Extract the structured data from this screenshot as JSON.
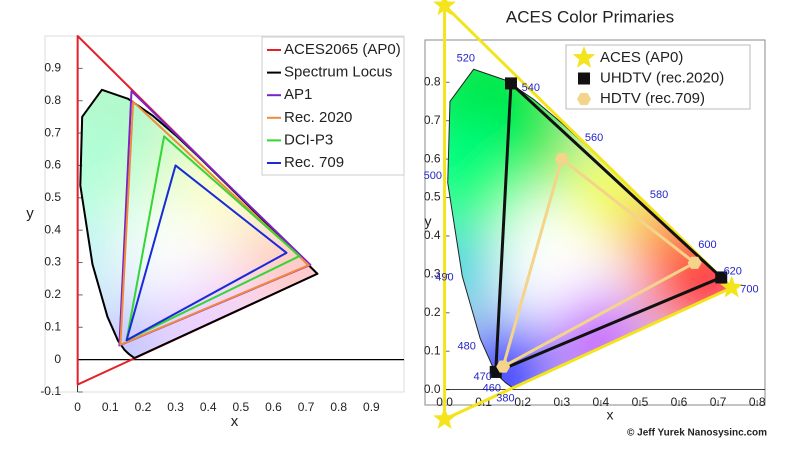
{
  "chart_data": [
    {
      "type": "chromaticity",
      "xlabel": "x",
      "ylabel": "y",
      "xlim": [
        -0.1,
        1.0
      ],
      "ylim": [
        -0.1,
        1.0
      ],
      "xticks": [
        0,
        0.1,
        0.2,
        0.3,
        0.4,
        0.5,
        0.6,
        0.7,
        0.8,
        0.9
      ],
      "yticks": [
        -0.1,
        0,
        0.1,
        0.2,
        0.3,
        0.4,
        0.5,
        0.6,
        0.7,
        0.8,
        0.9
      ],
      "legend": "upper right",
      "series": [
        {
          "name": "ACES2065 (AP0)",
          "color": "#e5202a",
          "closed": true,
          "x": [
            0.7347,
            0,
            0.0001
          ],
          "y": [
            0.2653,
            1,
            -0.077
          ]
        },
        {
          "name": "Spectrum Locus",
          "color": "#000000",
          "closed": true,
          "fill": "pastel",
          "x": [
            0.1741,
            0.1566,
            0.144,
            0.1241,
            0.0913,
            0.0454,
            0.0082,
            0.0139,
            0.0743,
            0.1547,
            0.2296,
            0.3016,
            0.3731,
            0.4441,
            0.5125,
            0.5752,
            0.627,
            0.6915,
            0.7347
          ],
          "y": [
            0.005,
            0.0177,
            0.0297,
            0.0578,
            0.1327,
            0.295,
            0.5384,
            0.7502,
            0.8338,
            0.8059,
            0.7543,
            0.6923,
            0.6245,
            0.5547,
            0.4866,
            0.4242,
            0.3725,
            0.3083,
            0.2653
          ]
        },
        {
          "name": "AP1",
          "color": "#7b22c8",
          "closed": true,
          "x": [
            0.713,
            0.165,
            0.128
          ],
          "y": [
            0.293,
            0.83,
            0.044
          ]
        },
        {
          "name": "Rec. 2020",
          "color": "#f08a3c",
          "closed": true,
          "x": [
            0.708,
            0.17,
            0.131
          ],
          "y": [
            0.292,
            0.797,
            0.046
          ]
        },
        {
          "name": "DCI-P3",
          "color": "#33d633",
          "closed": true,
          "x": [
            0.68,
            0.265,
            0.15
          ],
          "y": [
            0.32,
            0.69,
            0.06
          ]
        },
        {
          "name": "Rec. 709",
          "color": "#1a2ad6",
          "closed": true,
          "x": [
            0.64,
            0.3,
            0.15
          ],
          "y": [
            0.33,
            0.6,
            0.06
          ]
        }
      ]
    },
    {
      "type": "chromaticity",
      "title": "ACES Color Primaries",
      "xlabel": "x",
      "ylabel": "y",
      "xlim": [
        -0.05,
        0.82
      ],
      "ylim": [
        -0.04,
        0.91
      ],
      "xticks": [
        {
          "value": 0,
          "label": "0.0"
        },
        0.1,
        0.2,
        0.3,
        0.4,
        0.5,
        0.6,
        0.7,
        0.8
      ],
      "yticks": [
        {
          "value": 0,
          "label": "0.0"
        },
        0.1,
        0.2,
        0.3,
        0.4,
        0.5,
        0.6,
        0.7,
        0.8
      ],
      "legend": "upper right",
      "spectrum_locus": {
        "fill": "vivid",
        "x": [
          0.1741,
          0.1566,
          0.144,
          0.1241,
          0.0913,
          0.0454,
          0.0082,
          0.0139,
          0.0743,
          0.1547,
          0.2296,
          0.3016,
          0.3731,
          0.4441,
          0.5125,
          0.5752,
          0.627,
          0.6915,
          0.7347
        ],
        "y": [
          0.005,
          0.0177,
          0.0297,
          0.0578,
          0.1327,
          0.295,
          0.5384,
          0.7502,
          0.8338,
          0.8059,
          0.7543,
          0.6923,
          0.6245,
          0.5547,
          0.4866,
          0.4242,
          0.3725,
          0.3083,
          0.2653
        ]
      },
      "annotations": [
        {
          "text": "380",
          "x": 0.1741,
          "y": 0.005
        },
        {
          "text": "460",
          "x": 0.144,
          "y": 0.0297
        },
        {
          "text": "470",
          "x": 0.1241,
          "y": 0.0578
        },
        {
          "text": "480",
          "x": 0.0913,
          "y": 0.1327
        },
        {
          "text": "490",
          "x": 0.0454,
          "y": 0.295
        },
        {
          "text": "500",
          "x": 0.0082,
          "y": 0.5384
        },
        {
          "text": "520",
          "x": 0.0743,
          "y": 0.8338
        },
        {
          "text": "540",
          "x": 0.2296,
          "y": 0.7543
        },
        {
          "text": "560",
          "x": 0.3731,
          "y": 0.6245
        },
        {
          "text": "580",
          "x": 0.5125,
          "y": 0.4866
        },
        {
          "text": "600",
          "x": 0.627,
          "y": 0.3725
        },
        {
          "text": "620",
          "x": 0.6915,
          "y": 0.3083
        },
        {
          "text": "700",
          "x": 0.7347,
          "y": 0.2653
        }
      ],
      "series": [
        {
          "name": "ACES (AP0)",
          "color": "#f3e41c",
          "closed": true,
          "marker": "star",
          "x": [
            0.7347,
            0,
            0.0001
          ],
          "y": [
            0.2653,
            1,
            -0.077
          ]
        },
        {
          "name": "UHDTV (rec.2020)",
          "color": "#111111",
          "closed": true,
          "marker": "square",
          "x": [
            0.708,
            0.17,
            0.131
          ],
          "y": [
            0.292,
            0.797,
            0.046
          ]
        },
        {
          "name": "HDTV (rec.709)",
          "color": "#f3d48a",
          "closed": true,
          "marker": "hexagon",
          "x": [
            0.64,
            0.3,
            0.15
          ],
          "y": [
            0.33,
            0.6,
            0.06
          ]
        }
      ],
      "credit": "© Jeff Yurek Nanosysinc.com"
    }
  ]
}
